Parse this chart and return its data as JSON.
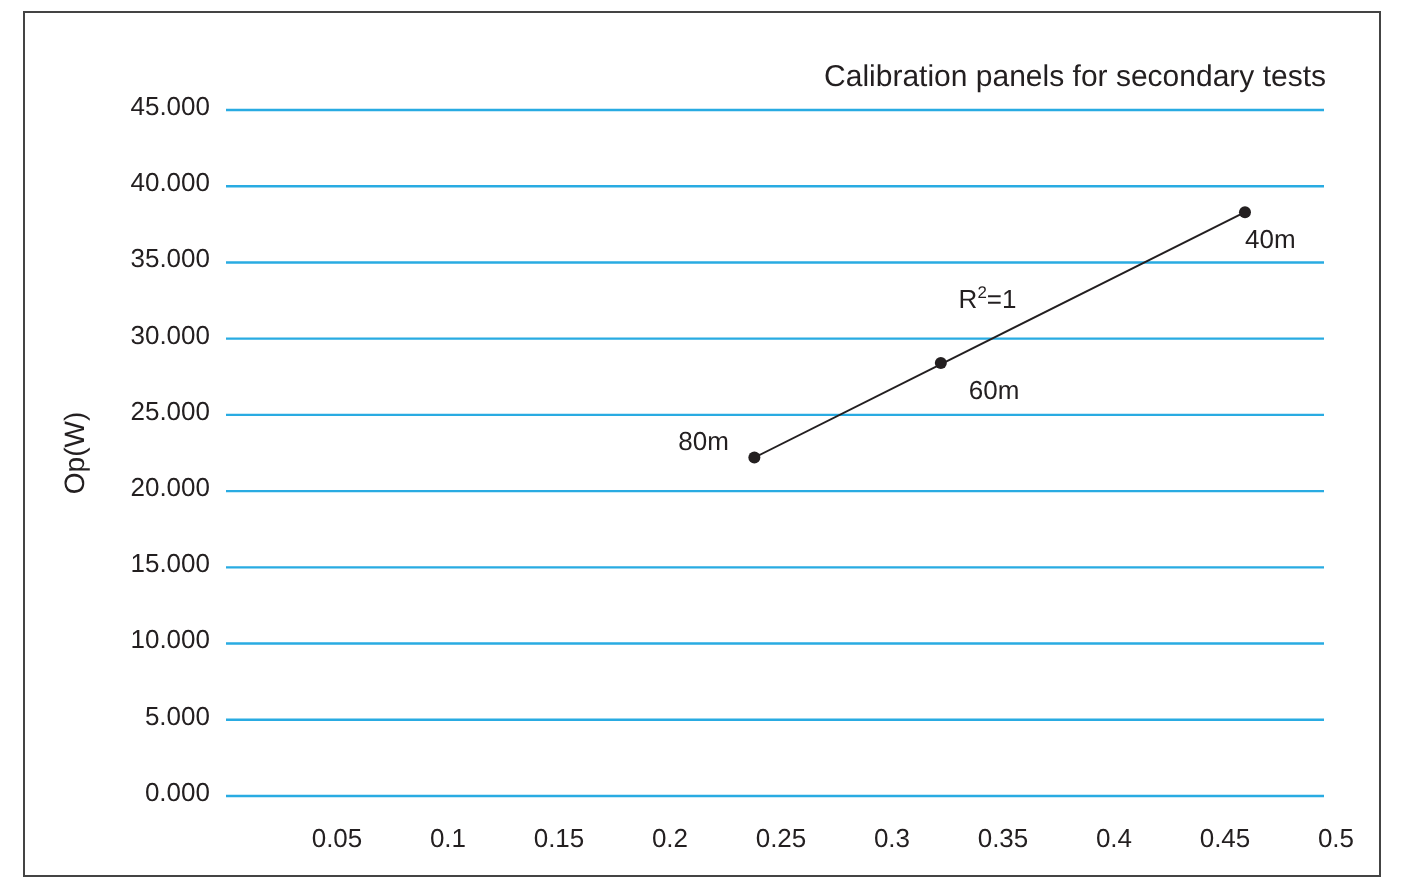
{
  "chart_data": {
    "type": "scatter",
    "title": "Calibration panels for secondary tests",
    "ylabel": "Op(W)",
    "xlim": [
      0,
      0.5
    ],
    "xticks": [
      0.05,
      0.1,
      0.15,
      0.2,
      0.25,
      0.3,
      0.35,
      0.4,
      0.45,
      0.5
    ],
    "ylim": [
      0,
      45
    ],
    "yticks": [
      {
        "value": 0,
        "label": "0.000"
      },
      {
        "value": 5,
        "label": "5.000"
      },
      {
        "value": 10,
        "label": "10.000"
      },
      {
        "value": 15,
        "label": "15.000"
      },
      {
        "value": 20,
        "label": "20.000"
      },
      {
        "value": 25,
        "label": "25.000"
      },
      {
        "value": 30,
        "label": "30.000"
      },
      {
        "value": 35,
        "label": "35.000"
      },
      {
        "value": 40,
        "label": "40.000"
      },
      {
        "value": 45,
        "label": "45.000"
      }
    ],
    "grid": "y",
    "marker": "circle",
    "series": [
      {
        "type": "line",
        "marker": "none",
        "color": "#231f20",
        "x": [
          0.238,
          0.459
        ],
        "values": [
          22.2,
          38.3
        ]
      },
      {
        "color": "#231f20",
        "x": [
          0.238,
          0.322,
          0.459
        ],
        "values": [
          22.2,
          28.4,
          38.3
        ]
      }
    ],
    "annotations": [
      {
        "text": "80m",
        "x": 0.238,
        "y": 22.2
      },
      {
        "text": "60m",
        "x": 0.322,
        "y": 28.4
      },
      {
        "text": "40m",
        "x": 0.459,
        "y": 38.3
      },
      "R$^{2}$=1"
    ]
  }
}
